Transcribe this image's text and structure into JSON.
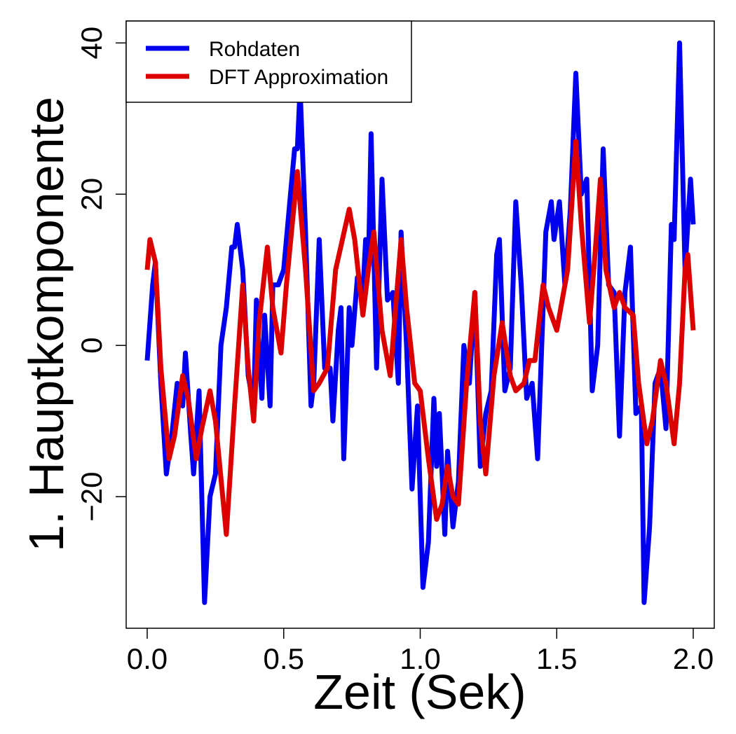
{
  "chart_data": {
    "type": "line",
    "x_label": "Zeit (Sek)",
    "y_label": "1. Hauptkomponente",
    "xlim": [
      -0.077,
      2.077
    ],
    "ylim": [
      -37.4,
      42.9
    ],
    "xticks": [
      {
        "value": 0,
        "label": "0.0"
      },
      0.5,
      {
        "value": 1,
        "label": "1.0"
      },
      1.5,
      {
        "value": 2,
        "label": "2.0"
      }
    ],
    "yticks": [
      {
        "value": -20,
        "label": "−20"
      },
      0,
      20,
      40
    ],
    "legend": "top-left",
    "series": [
      {
        "name": "Rohdaten",
        "color": "#0000ee",
        "x": [
          0,
          0.02,
          0.03,
          0.05,
          0.07,
          0.09,
          0.11,
          0.13,
          0.14,
          0.16,
          0.17,
          0.19,
          0.21,
          0.23,
          0.25,
          0.27,
          0.29,
          0.31,
          0.32,
          0.33,
          0.35,
          0.37,
          0.39,
          0.4,
          0.42,
          0.43,
          0.45,
          0.46,
          0.48,
          0.5,
          0.52,
          0.54,
          0.55,
          0.56,
          0.58,
          0.6,
          0.61,
          0.63,
          0.65,
          0.67,
          0.68,
          0.7,
          0.71,
          0.72,
          0.74,
          0.75,
          0.77,
          0.79,
          0.8,
          0.81,
          0.82,
          0.84,
          0.86,
          0.88,
          0.9,
          0.92,
          0.93,
          0.95,
          0.97,
          0.99,
          1.01,
          1.03,
          1.05,
          1.06,
          1.07,
          1.09,
          1.1,
          1.12,
          1.14,
          1.16,
          1.18,
          1.2,
          1.22,
          1.24,
          1.26,
          1.28,
          1.29,
          1.31,
          1.33,
          1.35,
          1.37,
          1.39,
          1.41,
          1.43,
          1.45,
          1.46,
          1.48,
          1.49,
          1.51,
          1.53,
          1.55,
          1.57,
          1.59,
          1.61,
          1.63,
          1.65,
          1.67,
          1.69,
          1.71,
          1.73,
          1.75,
          1.77,
          1.79,
          1.81,
          1.82,
          1.84,
          1.86,
          1.88,
          1.9,
          1.92,
          1.93,
          1.95,
          1.97,
          1.99,
          2.0
        ],
        "values": [
          -2,
          8,
          11,
          -5,
          -17,
          -12,
          -5,
          -8,
          -1,
          -12,
          -17,
          -6,
          -34,
          -20,
          -17,
          0,
          5,
          13,
          13,
          16,
          10,
          -4,
          -8,
          6,
          -7,
          4,
          -8,
          8,
          8,
          10,
          18,
          26,
          26,
          34,
          15,
          -8,
          -5,
          14,
          -3,
          -3,
          -10,
          2,
          5,
          -15,
          5,
          0,
          9,
          7,
          14,
          10,
          28,
          -3,
          22,
          6,
          7,
          -5,
          15,
          0,
          -19,
          -8,
          -32,
          -26,
          -7,
          -16,
          -9,
          -25,
          -14,
          -24,
          -18,
          0,
          -5,
          7,
          -16,
          -9,
          -6,
          12,
          14,
          -6,
          -3,
          19,
          8,
          -7,
          -5,
          -15,
          5,
          15,
          19,
          14,
          19,
          8,
          18,
          36,
          20,
          22,
          -6,
          0,
          26,
          8,
          7,
          -12,
          7,
          13,
          -9,
          -8,
          -34,
          -24,
          -5,
          -3,
          -11,
          16,
          14,
          40,
          10,
          22,
          16
        ]
      },
      {
        "name": "DFT Approximation",
        "color": "#dd0000",
        "x": [
          0,
          0.01,
          0.03,
          0.05,
          0.08,
          0.1,
          0.13,
          0.15,
          0.18,
          0.2,
          0.23,
          0.25,
          0.29,
          0.32,
          0.35,
          0.37,
          0.39,
          0.41,
          0.44,
          0.46,
          0.49,
          0.51,
          0.55,
          0.58,
          0.61,
          0.63,
          0.66,
          0.69,
          0.74,
          0.76,
          0.79,
          0.81,
          0.83,
          0.86,
          0.89,
          0.91,
          0.93,
          0.95,
          0.98,
          1.0,
          1.03,
          1.06,
          1.08,
          1.1,
          1.12,
          1.14,
          1.17,
          1.2,
          1.22,
          1.24,
          1.27,
          1.3,
          1.33,
          1.35,
          1.38,
          1.4,
          1.42,
          1.45,
          1.47,
          1.5,
          1.54,
          1.57,
          1.59,
          1.62,
          1.64,
          1.66,
          1.68,
          1.71,
          1.73,
          1.75,
          1.78,
          1.8,
          1.83,
          1.85,
          1.88,
          1.9,
          1.93,
          1.95,
          1.97,
          1.98,
          2.0
        ],
        "values": [
          10,
          14,
          11,
          -3,
          -15,
          -12,
          -4,
          -7,
          -15,
          -11,
          -6,
          -10,
          -25,
          -8,
          8,
          -3,
          -10,
          3,
          13,
          5,
          -1,
          8,
          23,
          10,
          -6,
          -5,
          -3,
          10,
          18,
          14,
          4,
          10,
          15,
          2,
          -4,
          5,
          14,
          5,
          -5,
          -6,
          -15,
          -23,
          -21,
          -16,
          -20,
          -21,
          -5,
          7,
          -10,
          -17,
          -4,
          3,
          -4,
          -6,
          -5,
          -2,
          -2,
          8,
          5,
          2,
          10,
          27,
          16,
          3,
          12,
          22,
          10,
          5,
          7,
          5,
          4,
          -5,
          -13,
          -10,
          -2,
          -5,
          -13,
          -5,
          10,
          12,
          2
        ]
      }
    ]
  }
}
